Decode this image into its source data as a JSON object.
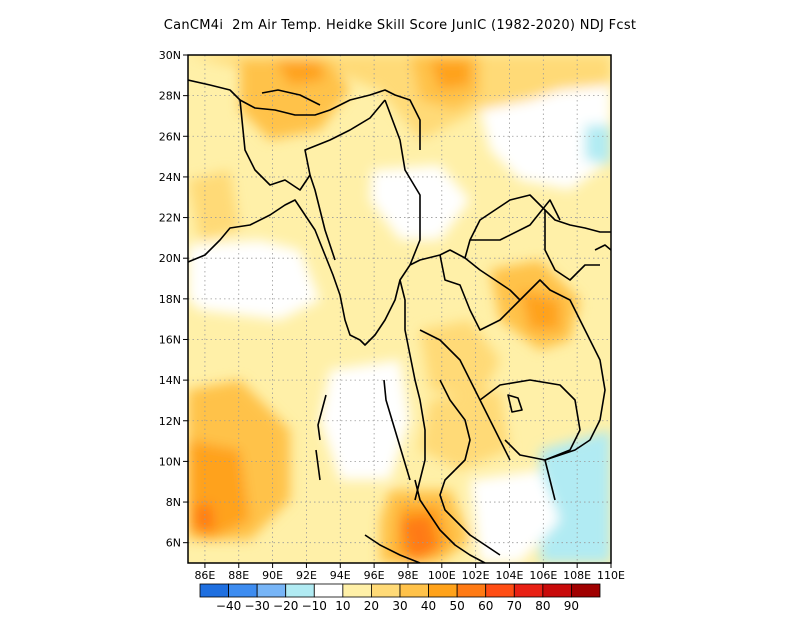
{
  "title": "CanCM4i  2m Air Temp. Heidke Skill Score JunIC (1982-2020) NDJ Fcst",
  "map": {
    "lon_range": [
      85,
      110
    ],
    "lat_range": [
      5,
      30
    ],
    "lat_ticks": [
      "30N",
      "28N",
      "26N",
      "24N",
      "22N",
      "20N",
      "18N",
      "16N",
      "14N",
      "12N",
      "10N",
      "8N",
      "6N"
    ],
    "lon_ticks": [
      "86E",
      "88E",
      "90E",
      "92E",
      "94E",
      "96E",
      "98E",
      "100E",
      "102E",
      "104E",
      "106E",
      "108E",
      "110E"
    ]
  },
  "colorbar": {
    "colors": [
      "#1e6fe0",
      "#3d8cf0",
      "#77b5f7",
      "#b1ebf3",
      "#ffffff",
      "#fff0a8",
      "#ffda77",
      "#ffc24a",
      "#ffa21a",
      "#ff7a14",
      "#ff4d14",
      "#e82014",
      "#c80a0a",
      "#a00000"
    ],
    "labels": [
      "-40",
      "-30",
      "-20",
      "-10",
      "10",
      "20",
      "30",
      "40",
      "50",
      "60",
      "70",
      "80",
      "90"
    ]
  }
}
